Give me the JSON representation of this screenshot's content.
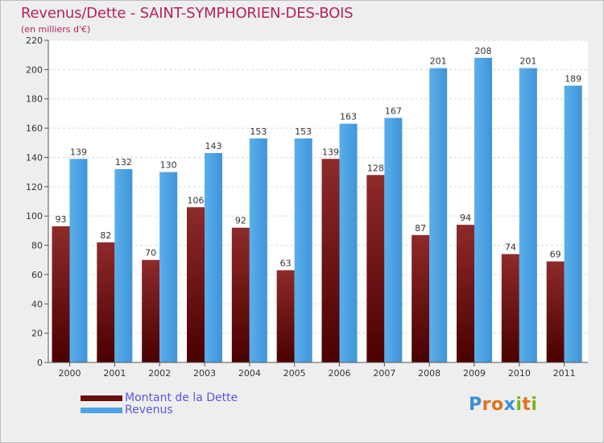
{
  "title": "Revenus/Dette - SAINT-SYMPHORIEN-DES-BOIS",
  "subtitle": "(en milliers d'€)",
  "chart_data": {
    "type": "bar",
    "categories": [
      "2000",
      "2001",
      "2002",
      "2003",
      "2004",
      "2005",
      "2006",
      "2007",
      "2008",
      "2009",
      "2010",
      "2011"
    ],
    "series": [
      {
        "name": "Montant de la Dette",
        "color": "#7a1a1a",
        "values": [
          93,
          82,
          70,
          106,
          92,
          63,
          139,
          128,
          87,
          94,
          74,
          69
        ]
      },
      {
        "name": "Revenus",
        "color": "#4ea3e4",
        "values": [
          139,
          132,
          130,
          143,
          153,
          153,
          163,
          167,
          201,
          208,
          201,
          189
        ]
      }
    ],
    "ylim": [
      0,
      220
    ],
    "yticks": [
      0,
      20,
      40,
      60,
      80,
      100,
      120,
      140,
      160,
      180,
      200,
      220
    ],
    "grid": true,
    "legend": "bottom-left"
  },
  "legend": {
    "items": [
      {
        "label": "Montant de la Dette",
        "color": "#6a0f0f"
      },
      {
        "label": "Revenus",
        "color": "#4ea3e4"
      }
    ]
  },
  "logo": {
    "letters": [
      {
        "ch": "P",
        "color": "#3a8fd6"
      },
      {
        "ch": "r",
        "color": "#e0731c"
      },
      {
        "ch": "o",
        "color": "#e0731c"
      },
      {
        "ch": "x",
        "color": "#3a8fd6"
      },
      {
        "ch": "i",
        "color": "#7ab51d"
      },
      {
        "ch": "t",
        "color": "#e0731c"
      },
      {
        "ch": "i",
        "color": "#7ab51d"
      }
    ]
  }
}
